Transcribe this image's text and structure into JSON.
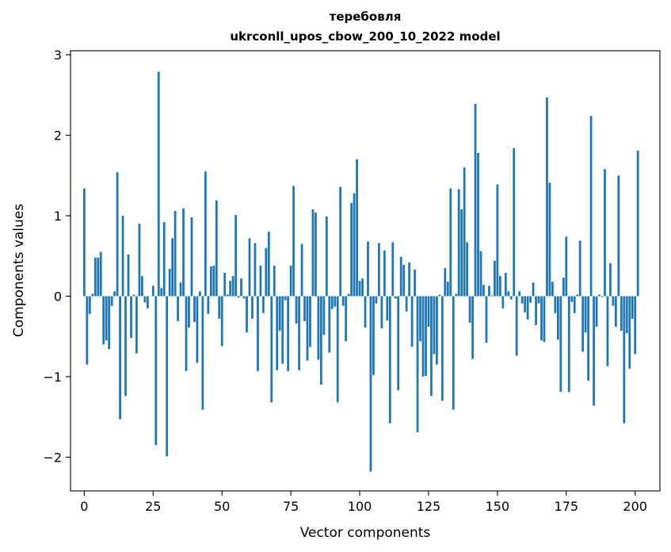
{
  "chart_data": {
    "type": "bar",
    "title_line1": "теребовля",
    "title_line2": "ukrconll_upos_cbow_200_10_2022 model",
    "xlabel": "Vector components",
    "ylabel": "Components values",
    "xlim": [
      -5,
      209
    ],
    "ylim": [
      -2.42,
      3.05
    ],
    "xticks": [
      0,
      25,
      50,
      75,
      100,
      125,
      150,
      175,
      200
    ],
    "yticks": [
      -2,
      -1,
      0,
      1,
      2,
      3
    ],
    "ytick_labels": [
      "−2",
      "−1",
      "0",
      "1",
      "2",
      "3"
    ],
    "bar_color": "#1f77b4",
    "values": [
      1.34,
      -0.85,
      -0.22,
      0.03,
      0.48,
      0.48,
      0.55,
      -0.6,
      -0.55,
      -0.66,
      -0.12,
      0.06,
      1.54,
      -1.53,
      1.0,
      -1.24,
      0.52,
      -0.52,
      0.02,
      -0.71,
      0.9,
      0.25,
      -0.08,
      -0.15,
      0.0,
      0.13,
      -1.85,
      2.79,
      0.1,
      0.92,
      -1.99,
      0.34,
      0.72,
      1.06,
      -0.31,
      0.17,
      1.09,
      -0.93,
      -0.39,
      0.98,
      -0.32,
      -0.83,
      0.06,
      -1.41,
      1.55,
      -0.22,
      0.37,
      0.38,
      1.19,
      -0.28,
      -0.62,
      0.29,
      0.02,
      0.19,
      0.25,
      1.01,
      -0.02,
      0.22,
      -0.03,
      -0.45,
      0.72,
      -0.28,
      0.66,
      -0.93,
      0.38,
      -0.21,
      0.6,
      0.8,
      -1.32,
      0.38,
      -0.92,
      -0.43,
      -0.84,
      -0.05,
      -0.93,
      0.38,
      1.37,
      -0.34,
      -0.92,
      0.65,
      -0.31,
      -0.8,
      -0.63,
      1.08,
      1.04,
      -0.79,
      -1.1,
      -0.48,
      0.99,
      -0.7,
      -0.16,
      -0.13,
      -1.32,
      1.36,
      -0.12,
      -0.56,
      0.03,
      1.16,
      1.28,
      1.7,
      0.19,
      0.22,
      -0.39,
      0.68,
      -2.18,
      -0.98,
      -0.09,
      0.66,
      -0.4,
      0.57,
      -0.3,
      -1.58,
      0.67,
      -0.03,
      -1.17,
      0.49,
      0.39,
      -0.19,
      0.42,
      -0.63,
      0.33,
      -1.69,
      -0.56,
      -1.0,
      -0.99,
      -0.38,
      -1.24,
      -0.72,
      -0.85,
      0.02,
      -1.3,
      0.35,
      0.18,
      1.34,
      -1.41,
      0.03,
      1.33,
      1.08,
      1.6,
      0.67,
      -0.33,
      -0.78,
      2.39,
      1.78,
      0.56,
      0.14,
      -0.58,
      0.13,
      0.01,
      0.44,
      1.39,
      0.25,
      -0.15,
      0.29,
      0.06,
      -0.04,
      1.84,
      -0.74,
      0.06,
      -0.09,
      -0.2,
      -0.29,
      -0.08,
      0.17,
      -0.36,
      -0.09,
      -0.55,
      -0.57,
      2.47,
      1.41,
      0.18,
      -0.21,
      -0.54,
      -1.19,
      0.23,
      0.74,
      -1.19,
      -0.07,
      -0.21,
      0.02,
      0.69,
      -0.69,
      -0.45,
      -1.05,
      2.24,
      -1.36,
      -0.38,
      0.02,
      -0.01,
      1.58,
      -0.87,
      0.41,
      -0.12,
      -0.38,
      1.5,
      -0.43,
      -1.58,
      -0.46,
      -0.9,
      -0.28,
      -0.72,
      1.81
    ]
  }
}
